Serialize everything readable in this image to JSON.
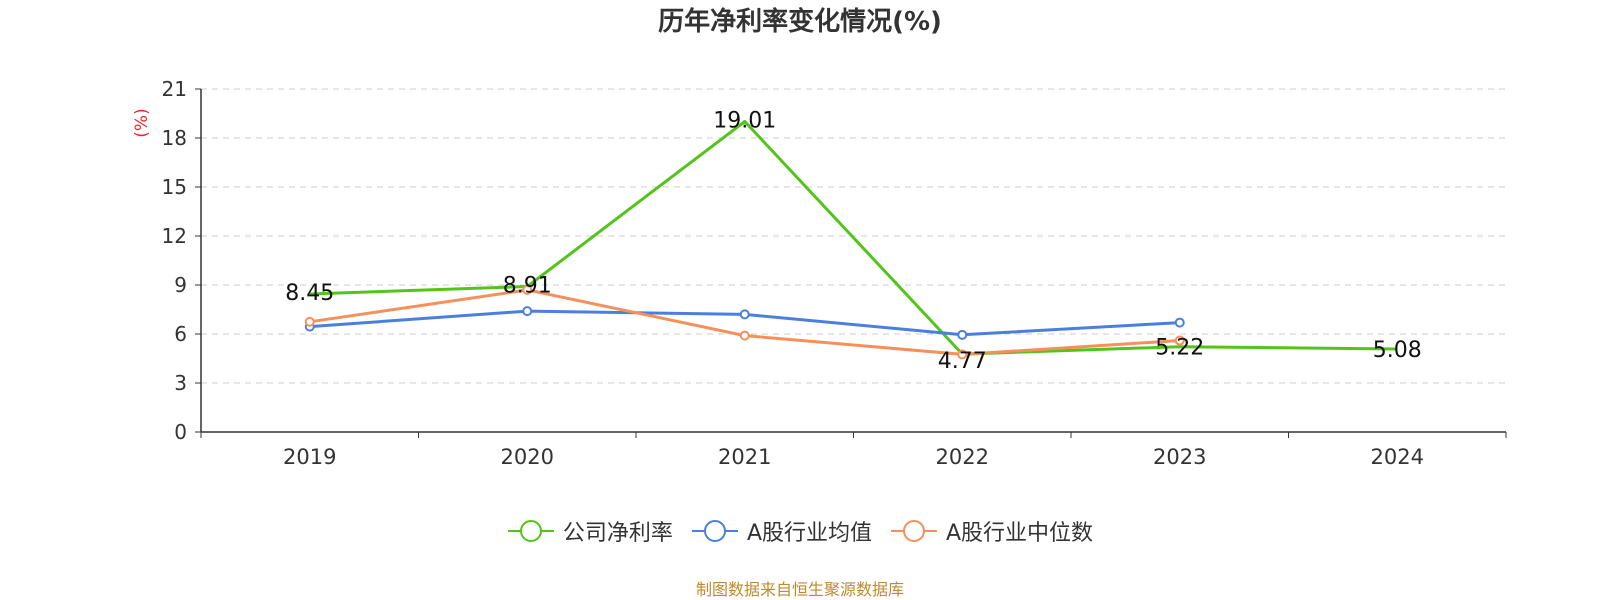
{
  "chart_data": {
    "type": "line",
    "title": "历年净利率变化情况(%)",
    "ylabel": "(%)",
    "xlabel": "",
    "categories": [
      "2019",
      "2020",
      "2021",
      "2022",
      "2023",
      "2024"
    ],
    "ylim": [
      0,
      21
    ],
    "yticks": [
      0,
      3,
      6,
      9,
      12,
      15,
      18,
      21
    ],
    "grid": true,
    "legend_position": "bottom",
    "series": [
      {
        "name": "公司净利率",
        "color": "#52c41a",
        "values": [
          8.45,
          8.91,
          19.01,
          4.77,
          5.22,
          5.08
        ],
        "show_labels": true,
        "show_markers": false
      },
      {
        "name": "A股行业均值",
        "color": "#4a7fe0",
        "values": [
          6.45,
          7.4,
          7.2,
          5.95,
          6.7,
          null
        ],
        "show_labels": false,
        "show_markers": true
      },
      {
        "name": "A股行业中位数",
        "color": "#f5905a",
        "values": [
          6.75,
          8.7,
          5.9,
          4.75,
          5.6,
          null
        ],
        "show_labels": false,
        "show_markers": true
      }
    ],
    "source": "制图数据来自恒生聚源数据库"
  }
}
